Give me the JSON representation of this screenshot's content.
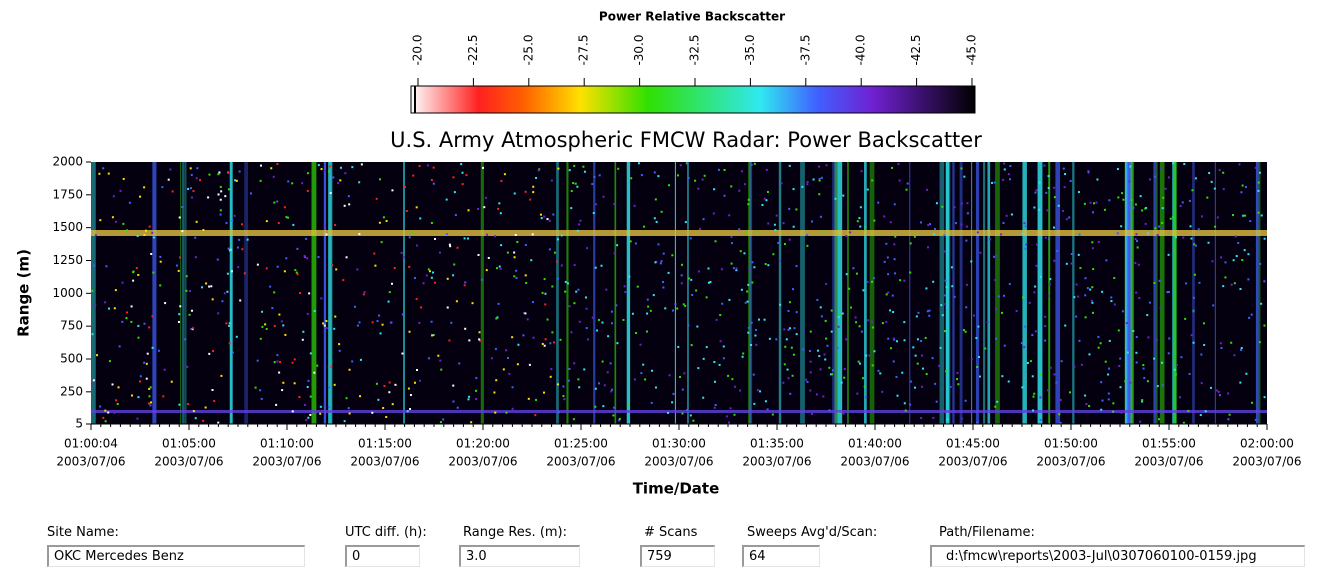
{
  "chart_data": {
    "type": "heatmap",
    "title": "U.S. Army Atmospheric FMCW Radar: Power Backscatter",
    "colorbar": {
      "title": "Power Relative Backscatter",
      "lim": [
        -20,
        -45
      ],
      "ticks": [
        {
          "value": -20,
          "label": "-20.0"
        },
        {
          "value": -22.5,
          "label": "-22.5"
        },
        {
          "value": -25,
          "label": "-25.0"
        },
        {
          "value": -27.5,
          "label": "-27.5"
        },
        {
          "value": -30,
          "label": "-30.0"
        },
        {
          "value": -32.5,
          "label": "-32.5"
        },
        {
          "value": -35,
          "label": "-35.0"
        },
        {
          "value": -37.5,
          "label": "-37.5"
        },
        {
          "value": -40,
          "label": "-40.0"
        },
        {
          "value": -42.5,
          "label": "-42.5"
        },
        {
          "value": -45,
          "label": "-45.0"
        }
      ]
    },
    "ylabel": "Range (m)",
    "xlabel": "Time/Date",
    "ylim": [
      5,
      2000
    ],
    "yticks": [
      5,
      250,
      500,
      750,
      1000,
      1250,
      1500,
      1750,
      2000
    ],
    "xtick_times": [
      "01:00:04",
      "01:05:00",
      "01:10:00",
      "01:15:00",
      "01:20:00",
      "01:25:00",
      "01:30:00",
      "01:35:00",
      "01:40:00",
      "01:45:00",
      "01:50:00",
      "01:55:00",
      "02:00:00"
    ],
    "xtick_dates": [
      "2003/07/06",
      "2003/07/06",
      "2003/07/06",
      "2003/07/06",
      "2003/07/06",
      "2003/07/06",
      "2003/07/06",
      "2003/07/06",
      "2003/07/06",
      "2003/07/06",
      "2003/07/06",
      "2003/07/06",
      "2003/07/06"
    ]
  },
  "fields": [
    {
      "label": "Site Name:",
      "value": "OKC Mercedes Benz"
    },
    {
      "label": "UTC diff. (h):",
      "value": "0"
    },
    {
      "label": "Range Res. (m):",
      "value": "3.0"
    },
    {
      "label": "# Scans",
      "value": "759"
    },
    {
      "label": "Sweeps Avg'd/Scan:",
      "value": "64"
    },
    {
      "label": "Path/Filename:",
      "value": "d:\\fmcw\\reports\\2003-Jul\\0307060100-0159.jpg"
    }
  ]
}
